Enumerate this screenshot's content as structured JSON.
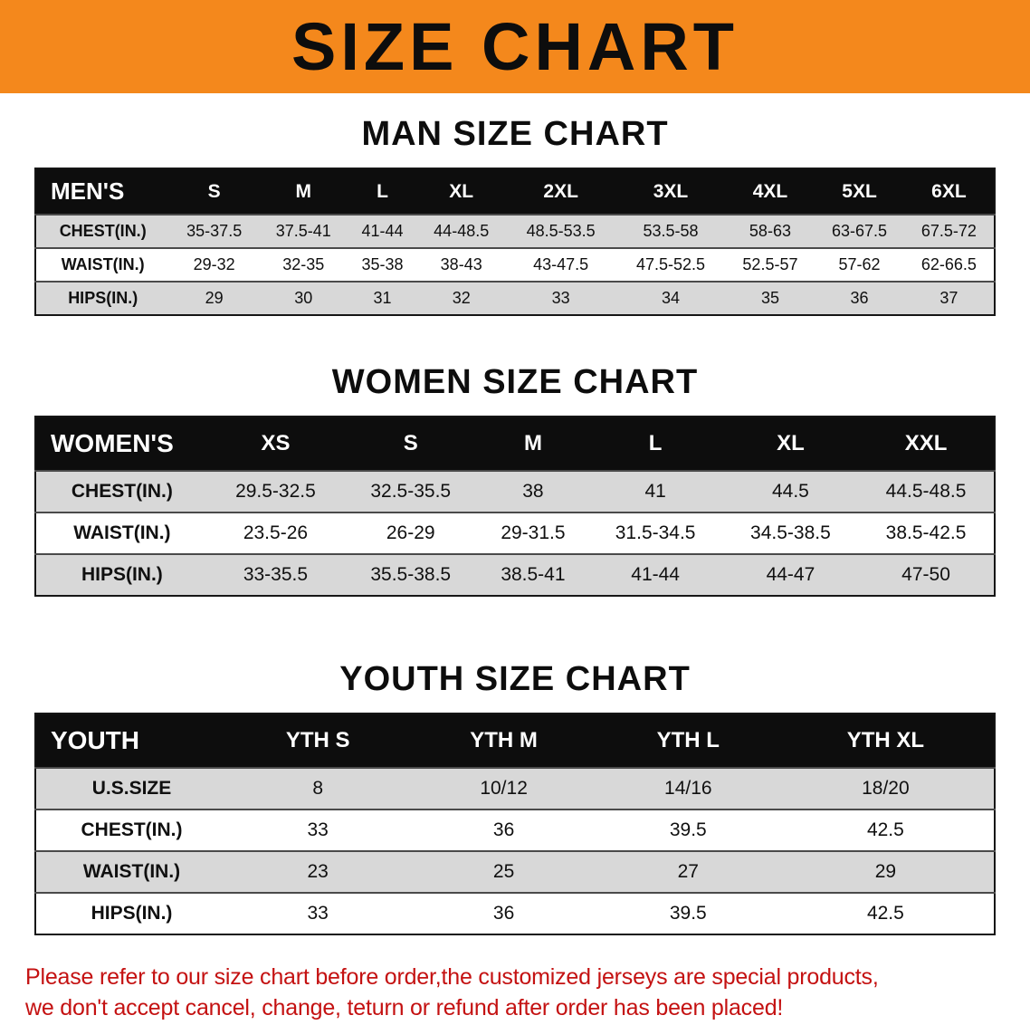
{
  "banner": {
    "title": "SIZE CHART",
    "bg_color": "#F4881C",
    "text_color": "#0d0d0d"
  },
  "chart_data": [
    {
      "type": "table",
      "title": "MAN SIZE CHART",
      "header": [
        "MEN'S",
        "S",
        "M",
        "L",
        "XL",
        "2XL",
        "3XL",
        "4XL",
        "5XL",
        "6XL"
      ],
      "rows": [
        [
          "CHEST(IN.)",
          "35-37.5",
          "37.5-41",
          "41-44",
          "44-48.5",
          "48.5-53.5",
          "53.5-58",
          "58-63",
          "63-67.5",
          "67.5-72"
        ],
        [
          "WAIST(IN.)",
          "29-32",
          "32-35",
          "35-38",
          "38-43",
          "43-47.5",
          "47.5-52.5",
          "52.5-57",
          "57-62",
          "62-66.5"
        ],
        [
          "HIPS(IN.)",
          "29",
          "30",
          "31",
          "32",
          "33",
          "34",
          "35",
          "36",
          "37"
        ]
      ]
    },
    {
      "type": "table",
      "title": "WOMEN SIZE CHART",
      "header": [
        "WOMEN'S",
        "XS",
        "S",
        "M",
        "L",
        "XL",
        "XXL"
      ],
      "rows": [
        [
          "CHEST(IN.)",
          "29.5-32.5",
          "32.5-35.5",
          "38",
          "41",
          "44.5",
          "44.5-48.5"
        ],
        [
          "WAIST(IN.)",
          "23.5-26",
          "26-29",
          "29-31.5",
          "31.5-34.5",
          "34.5-38.5",
          "38.5-42.5"
        ],
        [
          "HIPS(IN.)",
          "33-35.5",
          "35.5-38.5",
          "38.5-41",
          "41-44",
          "44-47",
          "47-50"
        ]
      ]
    },
    {
      "type": "table",
      "title": "YOUTH SIZE CHART",
      "header": [
        "YOUTH",
        "YTH S",
        "YTH M",
        "YTH L",
        "YTH XL"
      ],
      "rows": [
        [
          "U.S.SIZE",
          "8",
          "10/12",
          "14/16",
          "18/20"
        ],
        [
          "CHEST(IN.)",
          "33",
          "36",
          "39.5",
          "42.5"
        ],
        [
          "WAIST(IN.)",
          "23",
          "25",
          "27",
          "29"
        ],
        [
          "HIPS(IN.)",
          "33",
          "36",
          "39.5",
          "42.5"
        ]
      ]
    }
  ],
  "disclaimer": {
    "color": "#C41111",
    "line1": "Please refer to our size chart before order,the customized jerseys are special products,",
    "line2": "we don't accept cancel, change, teturn or refund after order has been placed!"
  }
}
